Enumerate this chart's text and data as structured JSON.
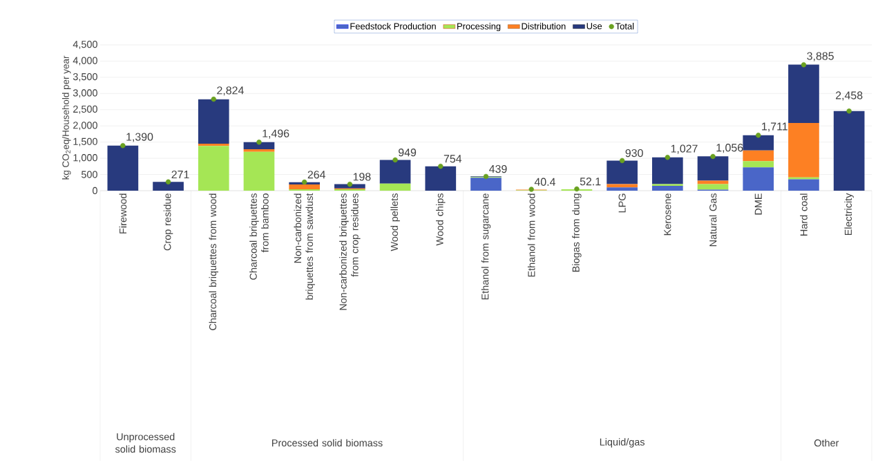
{
  "chart_data": {
    "type": "bar",
    "stacked": true,
    "ylabel": "kg CO$_{2}$eq/Household per year",
    "categories": [
      "Firewood",
      "Crop residue",
      "Charcoal briquettes from wood",
      "Charcoal briquettes from bamboo",
      "Non-carbonized briquettes from sawdust",
      "Non-carbonized briquettes from crop residues",
      "Wood pellets",
      "Wood chips",
      "Ethanol from sugarcane",
      "Ethanol from wood",
      "Biogas from dung",
      "LPG",
      "Kerosene",
      "Natural Gas",
      "DME",
      "Hard coal",
      "Electricity"
    ],
    "series": [
      {
        "name": "Feedstock Production",
        "color": "#4a66c8",
        "values": [
          0,
          0,
          0,
          0,
          0,
          0,
          0,
          0,
          400,
          0,
          0,
          100,
          150,
          30,
          720,
          350,
          0
        ]
      },
      {
        "name": "Processing",
        "color": "#a5e655",
        "values": [
          0,
          0,
          1380,
          1200,
          40,
          40,
          220,
          0,
          20,
          10,
          40,
          0,
          50,
          170,
          190,
          60,
          0
        ]
      },
      {
        "name": "Distribution",
        "color": "#fd8023",
        "values": [
          0,
          0,
          70,
          80,
          150,
          30,
          0,
          0,
          0,
          20,
          0,
          100,
          0,
          110,
          330,
          1680,
          0
        ]
      },
      {
        "name": "Use",
        "color": "#283a7e",
        "values": [
          1390,
          270,
          1370,
          220,
          70,
          130,
          730,
          750,
          20,
          null,
          null,
          730,
          830,
          750,
          470,
          1800,
          2460
        ]
      },
      {
        "name": "Total",
        "type": "scatter",
        "color": "#6aa121",
        "marker": "circle",
        "x": [
          "Firewood",
          "Crop residue",
          "Charcoal briquettes from wood",
          "Charcoal briquettes from bamboo",
          "Non-carbonized briquettes from sawdust",
          "Non-carbonized briquettes from crop residues",
          "Wood pellets",
          "Wood chips",
          "Ethanol from sugarcane",
          "Ethanol from wood",
          "Biogas from dung",
          "LPG",
          "Kerosene",
          "Natural Gas",
          "DME",
          "Hard coal",
          "Electricity"
        ],
        "values": [
          1390,
          271,
          2824,
          1496,
          264,
          198,
          949,
          754,
          439,
          40.4,
          52.1,
          930,
          1027,
          1056,
          1711,
          3885,
          2458
        ],
        "value_labels": [
          "1,390",
          "271",
          "2,824",
          "1,496",
          "264",
          "198",
          "949",
          "754",
          "439",
          "40.4",
          "52.1",
          "930",
          "1,027",
          "1,056",
          "1,711",
          "3,885",
          "2,458"
        ]
      }
    ],
    "ylim": [
      0,
      4500
    ],
    "yticks": [
      {
        "value": 0,
        "label": "0"
      },
      {
        "value": 500,
        "label": "500"
      },
      {
        "value": 1000,
        "label": "1,000"
      },
      {
        "value": 1500,
        "label": "1,500"
      },
      {
        "value": 2000,
        "label": "2,000"
      },
      {
        "value": 2500,
        "label": "2,500"
      },
      {
        "value": 3000,
        "label": "3,000"
      },
      {
        "value": 3500,
        "label": "3,500"
      },
      {
        "value": 4000,
        "label": "4,000"
      },
      {
        "value": 4500,
        "label": "4,500"
      }
    ],
    "grid": "y",
    "legend": "top",
    "annotations": [
      "Unprocessed solid biomass",
      "Processed solid biomass",
      "Liquid/gas",
      "Other"
    ]
  }
}
